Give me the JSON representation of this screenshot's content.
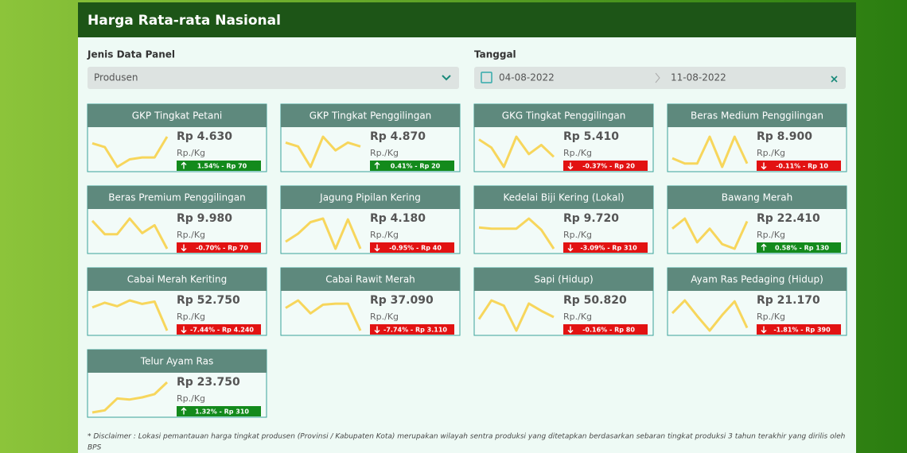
{
  "header": {
    "title": "Harga Rata-rata Nasional"
  },
  "filters": {
    "panel_label": "Jenis Data Panel",
    "panel_value": "Produsen",
    "date_label": "Tanggal",
    "date_start": "04-08-2022",
    "date_end": "11-08-2022"
  },
  "cards": [
    {
      "title": "GKP Tingkat Petani",
      "price": "Rp 4.630",
      "unit": "Rp./Kg",
      "change": "1.54% - Rp 70",
      "direction": "up",
      "trend": [
        26,
        22,
        1,
        9,
        11,
        11,
        33
      ]
    },
    {
      "title": "GKP Tingkat Penggilingan",
      "price": "Rp 4.870",
      "unit": "Rp./Kg",
      "change": "0.41% - Rp 20",
      "direction": "up",
      "trend": [
        28,
        24,
        3,
        34,
        20,
        28,
        24
      ]
    },
    {
      "title": "GKG Tingkat Penggilingan",
      "price": "Rp 5.410",
      "unit": "Rp./Kg",
      "change": "-0.37% - Rp 20",
      "direction": "down",
      "trend": [
        33,
        24,
        3,
        36,
        17,
        27,
        14
      ]
    },
    {
      "title": "Beras Medium Penggilingan",
      "price": "Rp 8.900",
      "unit": "Rp./Kg",
      "change": "-0.11% - Rp 10",
      "direction": "down",
      "trend": [
        13,
        7,
        7,
        38,
        3,
        38,
        7
      ]
    },
    {
      "title": "Beras Premium Penggilingan",
      "price": "Rp 9.980",
      "unit": "Rp./Kg",
      "change": "-0.70% - Rp 70",
      "direction": "down",
      "trend": [
        32,
        20,
        20,
        34,
        21,
        28,
        7
      ]
    },
    {
      "title": "Jagung Pipilan Kering",
      "price": "Rp 4.180",
      "unit": "Rp./Kg",
      "change": "-0.95% - Rp 40",
      "direction": "down",
      "trend": [
        12,
        21,
        34,
        38,
        4,
        37,
        4
      ]
    },
    {
      "title": "Kedelai Biji Kering (Lokal)",
      "price": "Rp 9.720",
      "unit": "Rp./Kg",
      "change": "-3.09% - Rp 310",
      "direction": "down",
      "trend": [
        26,
        25,
        25,
        25,
        34,
        24,
        7
      ]
    },
    {
      "title": "Bawang Merah",
      "price": "Rp 22.410",
      "unit": "Rp./Kg",
      "change": "0.58% - Rp 130",
      "direction": "up",
      "trend": [
        26,
        37,
        11,
        26,
        9,
        4,
        34
      ]
    },
    {
      "title": "Cabai Merah Keriting",
      "price": "Rp 52.750",
      "unit": "Rp./Kg",
      "change": "-7.44% - Rp 4.240",
      "direction": "down",
      "trend": [
        27,
        31,
        28,
        33,
        30,
        32,
        7
      ]
    },
    {
      "title": "Cabai Rawit Merah",
      "price": "Rp 37.090",
      "unit": "Rp./Kg",
      "change": "-7.74% - Rp 3.110",
      "direction": "down",
      "trend": [
        25,
        32,
        20,
        28,
        29,
        29,
        4
      ]
    },
    {
      "title": "Sapi (Hidup)",
      "price": "Rp 50.820",
      "unit": "Rp./Kg",
      "change": "-0.16% - Rp 80",
      "direction": "down",
      "trend": [
        14,
        32,
        27,
        3,
        29,
        22,
        16
      ]
    },
    {
      "title": "Ayam Ras Pedaging (Hidup)",
      "price": "Rp 21.170",
      "unit": "Rp./Kg",
      "change": "-1.81% - Rp 390",
      "direction": "down",
      "trend": [
        23,
        37,
        20,
        4,
        21,
        36,
        7
      ]
    },
    {
      "title": "Telur Ayam Ras",
      "price": "Rp 23.750",
      "unit": "Rp./Kg",
      "change": "1.32% - Rp 310",
      "direction": "up",
      "trend": [
        4,
        6,
        17,
        16,
        18,
        21,
        32
      ]
    }
  ],
  "disclaimer": [
    "* Disclaimer : Lokasi pemantauan harga tingkat produsen (Provinsi / Kabupaten Kota) merupakan wilayah sentra produksi yang ditetapkan berdasarkan sebaran tingkat produksi 3 tahun terakhir yang dirilis oleh",
    "BPS"
  ]
}
